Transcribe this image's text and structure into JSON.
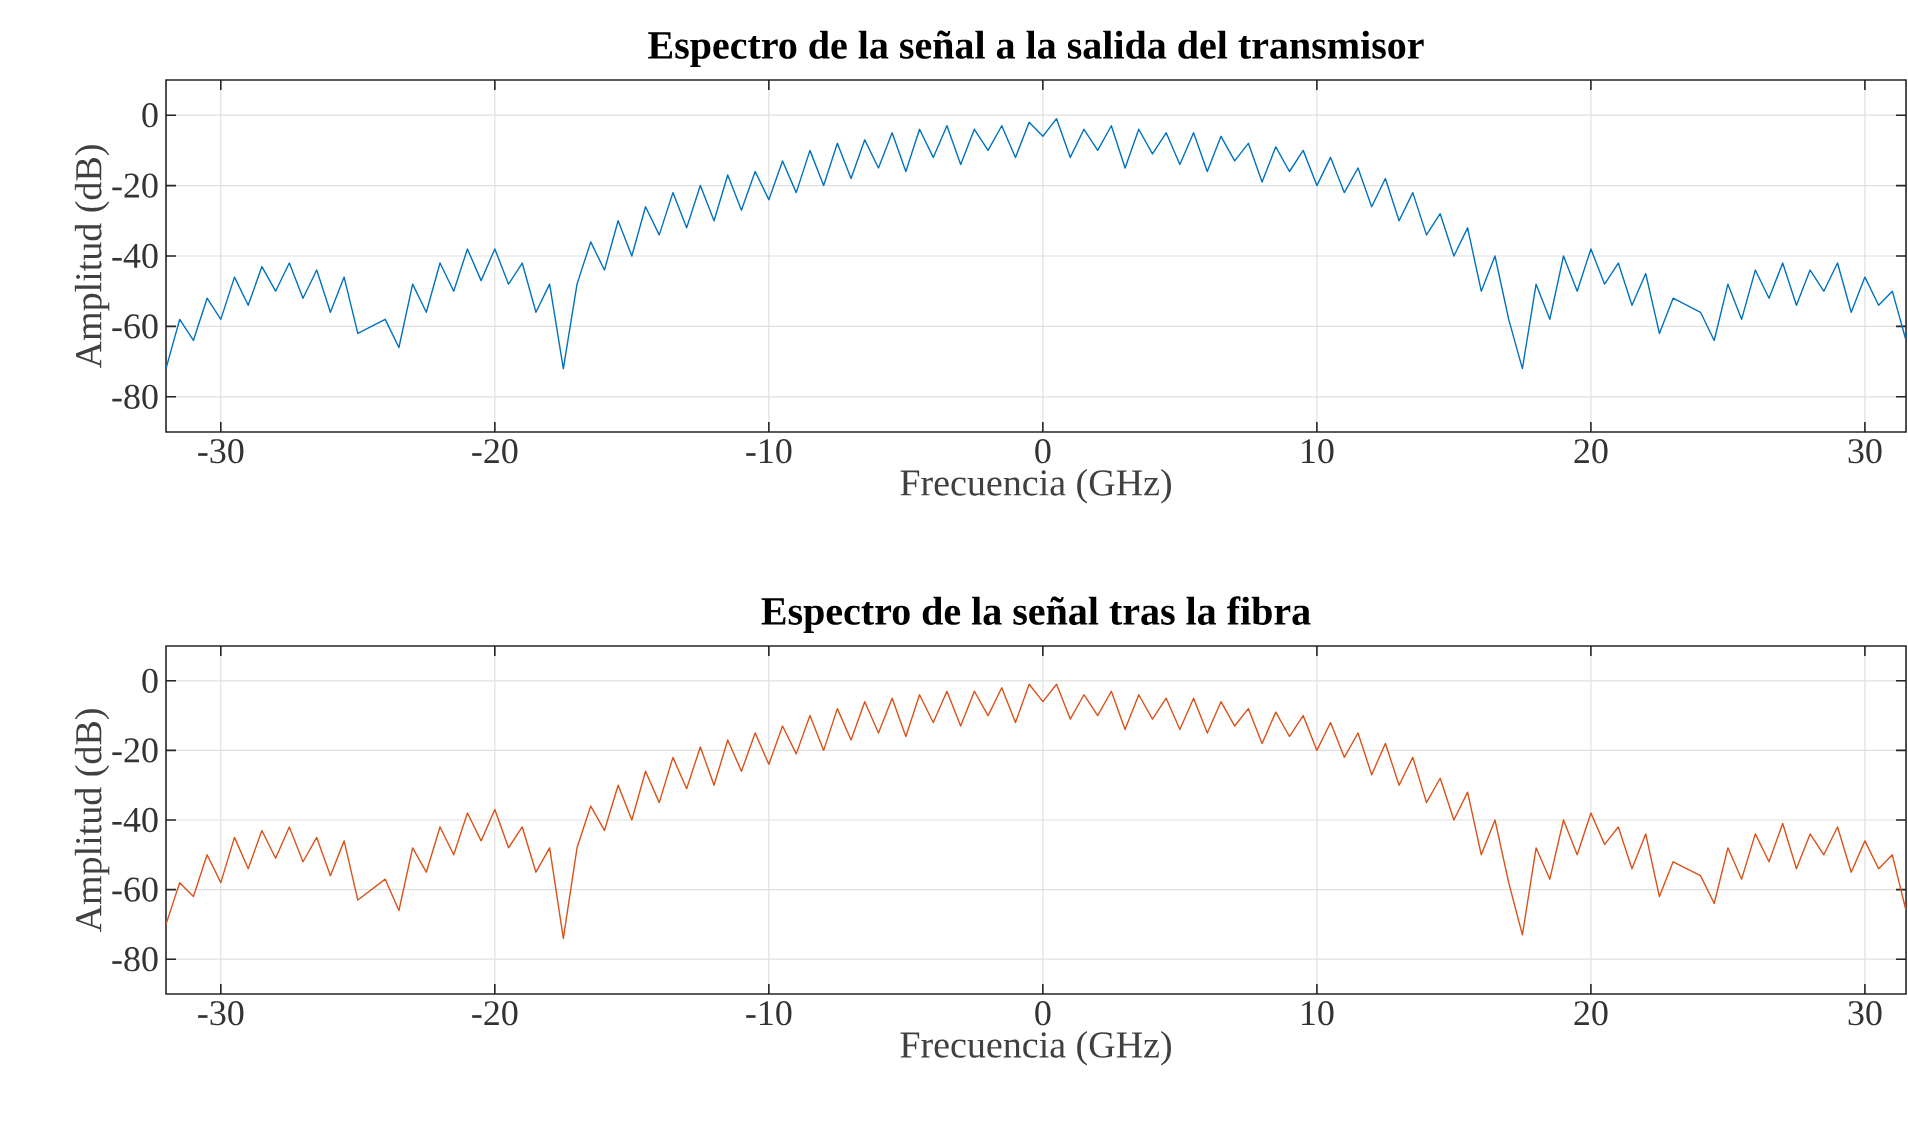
{
  "chart_data": [
    {
      "type": "line",
      "title": "Espectro de la señal a la salida del transmisor",
      "xlabel": "Frecuencia (GHz)",
      "ylabel": "Amplitud (dB)",
      "x": [
        -32,
        -31.5,
        -31,
        -30.5,
        -30,
        -29.5,
        -29,
        -28.5,
        -28,
        -27.5,
        -27,
        -26.5,
        -26,
        -25.5,
        -25,
        -24.5,
        -24,
        -23.5,
        -23,
        -22.5,
        -22,
        -21.5,
        -21,
        -20.5,
        -20,
        -19.5,
        -19,
        -18.5,
        -18,
        -17.5,
        -17,
        -16.5,
        -16,
        -15.5,
        -15,
        -14.5,
        -14,
        -13.5,
        -13,
        -12.5,
        -12,
        -11.5,
        -11,
        -10.5,
        -10,
        -9.5,
        -9,
        -8.5,
        -8,
        -7.5,
        -7,
        -6.5,
        -6,
        -5.5,
        -5,
        -4.5,
        -4,
        -3.5,
        -3,
        -2.5,
        -2,
        -1.5,
        -1,
        -0.5,
        0,
        0.5,
        1,
        1.5,
        2,
        2.5,
        3,
        3.5,
        4,
        4.5,
        5,
        5.5,
        6,
        6.5,
        7,
        7.5,
        8,
        8.5,
        9,
        9.5,
        10,
        10.5,
        11,
        11.5,
        12,
        12.5,
        13,
        13.5,
        14,
        14.5,
        15,
        15.5,
        16,
        16.5,
        17,
        17.5,
        18,
        18.5,
        19,
        19.5,
        20,
        20.5,
        21,
        21.5,
        22,
        22.5,
        23,
        23.5,
        24,
        24.5,
        25,
        25.5,
        26,
        26.5,
        27,
        27.5,
        28,
        28.5,
        29,
        29.5,
        30,
        30.5,
        31,
        31.5
      ],
      "series": [
        {
          "color": "#0072bd",
          "values": [
            -72,
            -58,
            -64,
            -52,
            -58,
            -46,
            -54,
            -43,
            -50,
            -42,
            -52,
            -44,
            -56,
            -46,
            -62,
            null,
            -58,
            -66,
            -48,
            -56,
            -42,
            -50,
            -38,
            -47,
            -38,
            -48,
            -42,
            -56,
            -48,
            -72,
            -48,
            -36,
            -44,
            -30,
            -40,
            -26,
            -34,
            -22,
            -32,
            -20,
            -30,
            -17,
            -27,
            -16,
            -24,
            -13,
            -22,
            -10,
            -20,
            -8,
            -18,
            -7,
            -15,
            -5,
            -16,
            -4,
            -12,
            -3,
            -14,
            -4,
            -10,
            -3,
            -12,
            -2,
            -6,
            -1,
            -12,
            -4,
            -10,
            -3,
            -15,
            -4,
            -11,
            -5,
            -14,
            -5,
            -16,
            -6,
            -13,
            -8,
            -19,
            -9,
            -16,
            -10,
            -20,
            -12,
            -22,
            -15,
            -26,
            -18,
            -30,
            -22,
            -34,
            -28,
            -40,
            -32,
            -50,
            -40,
            -58,
            -72,
            -48,
            -58,
            -40,
            -50,
            -38,
            -48,
            -42,
            -54,
            -45,
            -62,
            -52,
            null,
            -56,
            -64,
            -48,
            -58,
            -44,
            -52,
            -42,
            -54,
            -44,
            -50,
            -42,
            -56,
            -46,
            -54,
            -50,
            -64
          ]
        }
      ],
      "xlim": [
        -32,
        31.5
      ],
      "ylim": [
        -90,
        10
      ],
      "xticks": [
        -30,
        -20,
        -10,
        0,
        10,
        20,
        30
      ],
      "yticks": [
        -80,
        -60,
        -40,
        -20,
        0
      ],
      "grid": true
    },
    {
      "type": "line",
      "title": "Espectro de la señal tras la fibra",
      "xlabel": "Frecuencia (GHz)",
      "ylabel": "Amplitud (dB)",
      "x": [
        -32,
        -31.5,
        -31,
        -30.5,
        -30,
        -29.5,
        -29,
        -28.5,
        -28,
        -27.5,
        -27,
        -26.5,
        -26,
        -25.5,
        -25,
        -24.5,
        -24,
        -23.5,
        -23,
        -22.5,
        -22,
        -21.5,
        -21,
        -20.5,
        -20,
        -19.5,
        -19,
        -18.5,
        -18,
        -17.5,
        -17,
        -16.5,
        -16,
        -15.5,
        -15,
        -14.5,
        -14,
        -13.5,
        -13,
        -12.5,
        -12,
        -11.5,
        -11,
        -10.5,
        -10,
        -9.5,
        -9,
        -8.5,
        -8,
        -7.5,
        -7,
        -6.5,
        -6,
        -5.5,
        -5,
        -4.5,
        -4,
        -3.5,
        -3,
        -2.5,
        -2,
        -1.5,
        -1,
        -0.5,
        0,
        0.5,
        1,
        1.5,
        2,
        2.5,
        3,
        3.5,
        4,
        4.5,
        5,
        5.5,
        6,
        6.5,
        7,
        7.5,
        8,
        8.5,
        9,
        9.5,
        10,
        10.5,
        11,
        11.5,
        12,
        12.5,
        13,
        13.5,
        14,
        14.5,
        15,
        15.5,
        16,
        16.5,
        17,
        17.5,
        18,
        18.5,
        19,
        19.5,
        20,
        20.5,
        21,
        21.5,
        22,
        22.5,
        23,
        23.5,
        24,
        24.5,
        25,
        25.5,
        26,
        26.5,
        27,
        27.5,
        28,
        28.5,
        29,
        29.5,
        30,
        30.5,
        31,
        31.5
      ],
      "series": [
        {
          "color": "#d95319",
          "values": [
            -70,
            -58,
            -62,
            -50,
            -58,
            -45,
            -54,
            -43,
            -51,
            -42,
            -52,
            -45,
            -56,
            -46,
            -63,
            null,
            -57,
            -66,
            -48,
            -55,
            -42,
            -50,
            -38,
            -46,
            -37,
            -48,
            -42,
            -55,
            -48,
            -74,
            -48,
            -36,
            -43,
            -30,
            -40,
            -26,
            -35,
            -22,
            -31,
            -19,
            -30,
            -17,
            -26,
            -15,
            -24,
            -13,
            -21,
            -10,
            -20,
            -8,
            -17,
            -6,
            -15,
            -5,
            -16,
            -4,
            -12,
            -3,
            -13,
            -3,
            -10,
            -2,
            -12,
            -1,
            -6,
            -1,
            -11,
            -4,
            -10,
            -3,
            -14,
            -4,
            -11,
            -5,
            -14,
            -5,
            -15,
            -6,
            -13,
            -8,
            -18,
            -9,
            -16,
            -10,
            -20,
            -12,
            -22,
            -15,
            -27,
            -18,
            -30,
            -22,
            -35,
            -28,
            -40,
            -32,
            -50,
            -40,
            -58,
            -73,
            -48,
            -57,
            -40,
            -50,
            -38,
            -47,
            -42,
            -54,
            -44,
            -62,
            -52,
            null,
            -56,
            -64,
            -48,
            -57,
            -44,
            -52,
            -41,
            -54,
            -44,
            -50,
            -42,
            -55,
            -46,
            -54,
            -50,
            -66
          ]
        }
      ],
      "xlim": [
        -32,
        31.5
      ],
      "ylim": [
        -90,
        10
      ],
      "xticks": [
        -30,
        -20,
        -10,
        0,
        10,
        20,
        30
      ],
      "yticks": [
        -80,
        -60,
        -40,
        -20,
        0
      ],
      "grid": true
    }
  ]
}
